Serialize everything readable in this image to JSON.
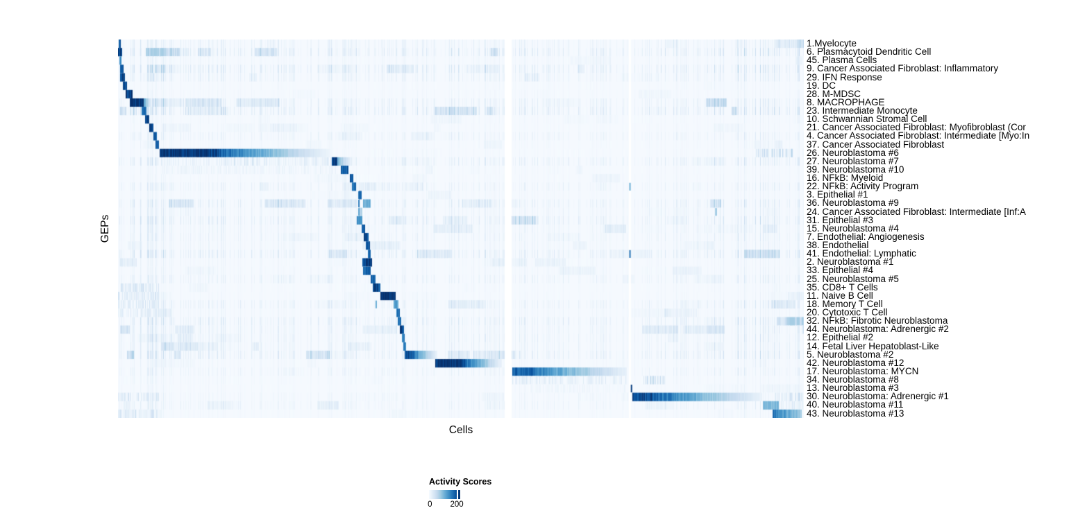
{
  "chart_data": {
    "type": "heatmap",
    "title": "",
    "xlabel": "Cells",
    "ylabel": "GEPs",
    "legend_position": "bottom",
    "grid": false,
    "colorbar": {
      "title": "Activity Scores",
      "min_label": "0",
      "tick_label": "200",
      "tick_pos": 0.89,
      "range": [
        0,
        225
      ]
    },
    "colormap_stops": [
      "#F7FBFF",
      "#DEEBF7",
      "#C6DBEF",
      "#9ECAE1",
      "#6BAED6",
      "#4292C6",
      "#2171B5",
      "#08519C",
      "#08306B"
    ],
    "column_gaps": [
      [
        0.5638,
        0.5739
      ],
      [
        0.7449,
        0.7479
      ]
    ],
    "noise_seed": 7,
    "rows": [
      {
        "label": "1.Myelocyte",
        "segments": [
          [
            0.001,
            0.004,
            0.9,
            0.9,
            "n"
          ]
        ]
      },
      {
        "label": "6. Plasmacytoid Dendritic Cell",
        "segments": [
          [
            0.0,
            0.006,
            0.95,
            0.95,
            "n"
          ]
        ]
      },
      {
        "label": "45. Plasma Cells",
        "segments": [
          [
            0.002,
            0.005,
            0.6,
            0.6,
            "n"
          ]
        ]
      },
      {
        "label": "9. Cancer Associated Fibroblast: Inflammatory",
        "segments": [
          [
            0.003,
            0.008,
            0.85,
            0.85,
            "n"
          ]
        ]
      },
      {
        "label": "29. IFN Response",
        "segments": [
          [
            0.003,
            0.01,
            0.9,
            0.9,
            "n"
          ],
          [
            0.045,
            0.056,
            0.25,
            0.25,
            "s"
          ]
        ]
      },
      {
        "label": "19. DC",
        "segments": [
          [
            0.007,
            0.013,
            0.9,
            0.9,
            "n"
          ]
        ]
      },
      {
        "label": "28. M-MDSC",
        "segments": [
          [
            0.011,
            0.021,
            0.95,
            0.95,
            "n"
          ]
        ]
      },
      {
        "label": "8. MACROPHAGE",
        "segments": [
          [
            0.017,
            0.037,
            1,
            1,
            "n"
          ],
          [
            0.037,
            0.05,
            0.55,
            0.03,
            "g"
          ]
        ]
      },
      {
        "label": "23. Intermediate Monocyte",
        "segments": [
          [
            0.034,
            0.041,
            0.75,
            0.75,
            "n"
          ],
          [
            0.001,
            0.03,
            0.3,
            0.3,
            "s"
          ]
        ]
      },
      {
        "label": "10. Schwannian Stromal Cell",
        "segments": [
          [
            0.039,
            0.046,
            0.95,
            0.95,
            "n"
          ]
        ]
      },
      {
        "label": "21. Cancer Associated Fibroblast: Myofibroblast (Cor",
        "segments": [
          [
            0.046,
            0.052,
            0.9,
            0.9,
            "n"
          ]
        ]
      },
      {
        "label": "4. Cancer Associated Fibroblast: Intermediate [Myo:In",
        "segments": [
          [
            0.052,
            0.057,
            0.85,
            0.85,
            "n"
          ]
        ]
      },
      {
        "label": "37. Cancer Associated Fibroblast",
        "segments": [
          [
            0.055,
            0.06,
            0.8,
            0.8,
            "n"
          ]
        ]
      },
      {
        "label": "26. Neuroblastoma #6",
        "segments": [
          [
            0.061,
            0.132,
            1,
            1,
            "n"
          ],
          [
            0.132,
            0.314,
            0.95,
            0.02,
            "g"
          ],
          [
            0.93,
            0.985,
            0.3,
            0.3,
            "s"
          ]
        ]
      },
      {
        "label": "27. Neuroblastoma #7",
        "segments": [
          [
            0.312,
            0.32,
            0.95,
            0.95,
            "n"
          ],
          [
            0.32,
            0.34,
            0.5,
            0.05,
            "g"
          ],
          [
            0.065,
            0.31,
            0.1,
            0.1,
            "s"
          ]
        ]
      },
      {
        "label": "39. Neuroblastoma #10",
        "segments": [
          [
            0.325,
            0.336,
            0.85,
            0.85,
            "n"
          ],
          [
            0.065,
            0.32,
            0.08,
            0.08,
            "s"
          ]
        ]
      },
      {
        "label": "16. NFkB: Myeloid",
        "segments": [
          [
            0.338,
            0.343,
            0.9,
            0.9,
            "n"
          ]
        ]
      },
      {
        "label": "22. NFkB: Activity Program",
        "segments": [
          [
            0.341,
            0.347,
            0.8,
            0.8,
            "n"
          ]
        ]
      },
      {
        "label": "3. Epithelial #1",
        "segments": [
          [
            0.351,
            0.355,
            0.8,
            0.8,
            "n"
          ]
        ]
      },
      {
        "label": "36. Neuroblastoma #9",
        "segments": [
          [
            0.357,
            0.368,
            0.5,
            0.5,
            "n"
          ]
        ]
      },
      {
        "label": "24. Cancer Associated Fibroblast: Intermediate [Inf:A",
        "segments": [
          [
            0.351,
            0.356,
            0.3,
            0.3,
            "n"
          ]
        ]
      },
      {
        "label": "31. Epithelial #3",
        "segments": [
          [
            0.348,
            0.356,
            0.65,
            0.65,
            "n"
          ]
        ]
      },
      {
        "label": "15. Neuroblastoma #4",
        "segments": [
          [
            0.355,
            0.36,
            0.8,
            0.8,
            "n"
          ]
        ]
      },
      {
        "label": "7. Endothelial: Angiogenesis",
        "segments": [
          [
            0.358,
            0.365,
            0.9,
            0.9,
            "n"
          ]
        ]
      },
      {
        "label": "38. Endothelial",
        "segments": [
          [
            0.361,
            0.367,
            0.85,
            0.85,
            "n"
          ]
        ]
      },
      {
        "label": "41. Endothelial: Lymphatic",
        "segments": [
          [
            0.364,
            0.368,
            0.8,
            0.8,
            "n"
          ]
        ]
      },
      {
        "label": "2. Neuroblastoma #1",
        "segments": [
          [
            0.356,
            0.37,
            0.95,
            0.95,
            "n"
          ]
        ]
      },
      {
        "label": "33. Epithelial #4",
        "segments": [
          [
            0.357,
            0.368,
            0.8,
            0.8,
            "n"
          ]
        ]
      },
      {
        "label": "25. Neuroblastoma #5",
        "segments": [
          [
            0.368,
            0.375,
            0.8,
            0.8,
            "n"
          ]
        ]
      },
      {
        "label": "35. CD8+ T Cells",
        "segments": [
          [
            0.371,
            0.383,
            0.9,
            0.9,
            "n"
          ],
          [
            0.0,
            0.06,
            0.25,
            0.25,
            "s"
          ]
        ]
      },
      {
        "label": "11. Naive B Cell",
        "segments": [
          [
            0.383,
            0.405,
            1,
            1,
            "n"
          ],
          [
            0.0,
            0.06,
            0.2,
            0.2,
            "s"
          ]
        ]
      },
      {
        "label": "18. Memory T Cell",
        "segments": [
          [
            0.402,
            0.409,
            0.55,
            0.55,
            "n"
          ],
          [
            0.0,
            0.06,
            0.2,
            0.2,
            "s"
          ]
        ]
      },
      {
        "label": "20. Cytotoxic T Cell",
        "segments": [
          [
            0.406,
            0.411,
            0.75,
            0.75,
            "n"
          ],
          [
            0.0,
            0.06,
            0.15,
            0.15,
            "s"
          ]
        ]
      },
      {
        "label": "32. NFkB: Fibrotic Neuroblastoma",
        "segments": [
          [
            0.408,
            0.413,
            0.8,
            0.8,
            "n"
          ]
        ]
      },
      {
        "label": "44. Neuroblastoma: Adrenergic #2",
        "segments": [
          [
            0.411,
            0.417,
            0.9,
            0.9,
            "n"
          ]
        ]
      },
      {
        "label": "12. Epithelial #2",
        "segments": [
          [
            0.414,
            0.418,
            0.7,
            0.7,
            "n"
          ]
        ]
      },
      {
        "label": "14. Fetal Liver Hepatoblast-Like",
        "segments": [
          [
            0.416,
            0.42,
            0.7,
            0.7,
            "n"
          ]
        ]
      },
      {
        "label": "5. Neuroblastoma #2",
        "segments": [
          [
            0.418,
            0.428,
            0.85,
            0.85,
            "n"
          ],
          [
            0.428,
            0.466,
            0.8,
            0.05,
            "g"
          ]
        ]
      },
      {
        "label": "42. Neuroblastoma #12",
        "segments": [
          [
            0.463,
            0.501,
            1,
            1,
            "n"
          ],
          [
            0.501,
            0.56,
            0.9,
            0.05,
            "g"
          ]
        ]
      },
      {
        "label": "17. Neuroblastoma: MYCN",
        "segments": [
          [
            0.575,
            0.604,
            0.8,
            0.8,
            "n"
          ],
          [
            0.604,
            0.742,
            0.75,
            0.07,
            "g"
          ]
        ]
      },
      {
        "label": "34. Neuroblastoma #8",
        "segments": [
          [
            0.575,
            0.742,
            0.14,
            0.14,
            "s"
          ],
          [
            0.765,
            0.8,
            0.3,
            0.3,
            "s"
          ]
        ]
      },
      {
        "label": "13. Neuroblastoma #3",
        "segments": [
          [
            0.6,
            0.74,
            0.06,
            0.06,
            "s"
          ]
        ]
      },
      {
        "label": "30. Neuroblastoma: Adrenergic #1",
        "segments": [
          [
            0.75,
            0.779,
            0.9,
            0.9,
            "n"
          ],
          [
            0.779,
            0.939,
            0.85,
            0.06,
            "g"
          ],
          [
            0.957,
            0.999,
            0.25,
            0.25,
            "s"
          ],
          [
            0.0,
            0.06,
            0.2,
            0.2,
            "s"
          ]
        ]
      },
      {
        "label": "40. Neuroblastoma #11",
        "segments": [
          [
            0.94,
            0.964,
            0.45,
            0.45,
            "n"
          ],
          [
            0.964,
            0.999,
            0.15,
            0.15,
            "s"
          ]
        ]
      },
      {
        "label": "43. Neuroblastoma #13",
        "segments": [
          [
            0.954,
            0.997,
            0.75,
            0.35,
            "g"
          ],
          [
            0.0,
            0.06,
            0.2,
            0.2,
            "s"
          ]
        ]
      }
    ],
    "tick_marks": [
      [
        17,
        0.7465,
        0.5
      ],
      [
        25,
        0.7465,
        0.75
      ],
      [
        41,
        0.7487,
        0.95
      ],
      [
        18,
        0.3513,
        0.75
      ],
      [
        19,
        0.3513,
        0.7
      ],
      [
        20,
        0.3513,
        0.55
      ],
      [
        20,
        0.872,
        0.45
      ],
      [
        31,
        0.3765,
        0.5
      ]
    ]
  }
}
